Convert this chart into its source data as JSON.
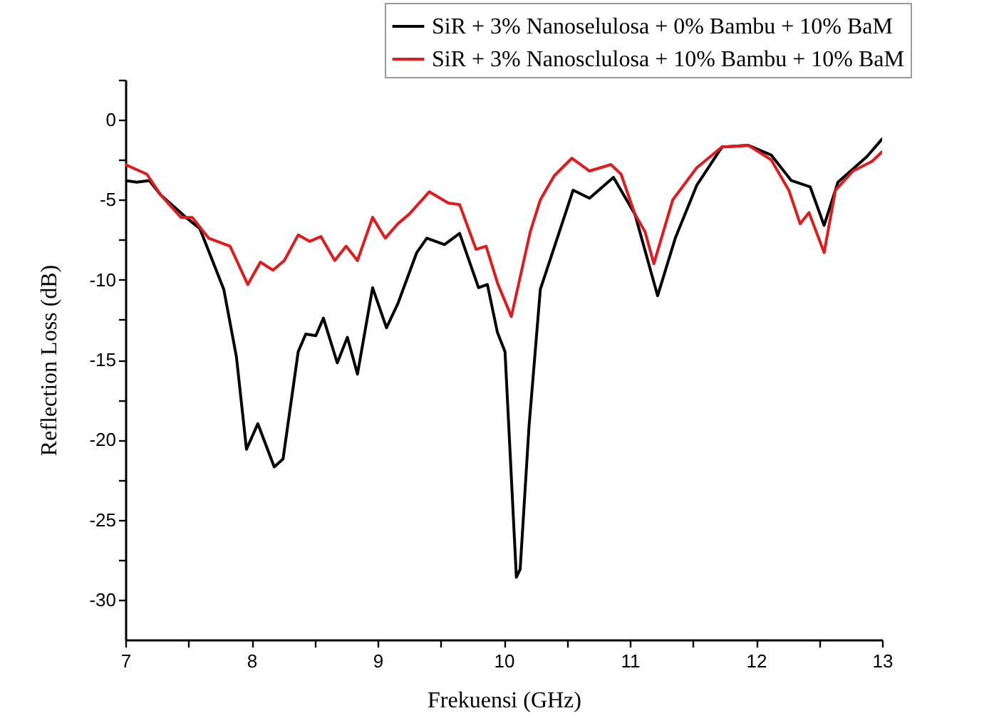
{
  "chart_data": {
    "type": "line",
    "xlabel": "Frekuensi (GHz)",
    "ylabel": "Reflection Loss (dB)",
    "xlim": [
      7,
      13
    ],
    "ylim": [
      -32.5,
      2.5
    ],
    "xticks": [
      7,
      {
        "value": 7.5,
        "label": null
      },
      8,
      {
        "value": 8.5,
        "label": null
      },
      9,
      {
        "value": 9.5,
        "label": null
      },
      10,
      {
        "value": 10.5,
        "label": null
      },
      11,
      {
        "value": 11.5,
        "label": null
      },
      12,
      {
        "value": 12.5,
        "label": null
      },
      13
    ],
    "yticks": [
      -30,
      {
        "value": -27.5,
        "label": null
      },
      -25,
      {
        "value": -22.5,
        "label": null
      },
      -20,
      {
        "value": -17.5,
        "label": null
      },
      -15,
      {
        "value": -12.5,
        "label": null
      },
      -10,
      {
        "value": -7.5,
        "label": null
      },
      -5,
      {
        "value": -2.5,
        "label": null
      },
      0,
      {
        "value": 2.5,
        "label": null
      }
    ],
    "grid": false,
    "legend": "top right",
    "line_style": "solid",
    "series": [
      {
        "name": "SiR + 3% Nanoselulosa + 0% Bambu + 10% BaM",
        "color": "#000000",
        "x": [
          7.0,
          7.09,
          7.19,
          7.28,
          7.48,
          7.59,
          7.69,
          7.78,
          7.88,
          7.96,
          8.05,
          8.18,
          8.25,
          8.37,
          8.43,
          8.51,
          8.57,
          8.68,
          8.76,
          8.84,
          8.96,
          9.07,
          9.16,
          9.31,
          9.39,
          9.53,
          9.65,
          9.8,
          9.87,
          9.95,
          10.01,
          10.1,
          10.13,
          10.2,
          10.29,
          10.55,
          10.68,
          10.87,
          11.04,
          11.22,
          11.36,
          11.53,
          11.73,
          11.94,
          12.12,
          12.28,
          12.43,
          12.54,
          12.65,
          12.88,
          13.0
        ],
        "values": [
          -3.8,
          -3.9,
          -3.8,
          -4.7,
          -6.1,
          -6.8,
          -8.8,
          -10.6,
          -14.8,
          -20.6,
          -19.0,
          -21.7,
          -21.2,
          -14.5,
          -13.4,
          -13.5,
          -12.4,
          -15.2,
          -13.6,
          -15.9,
          -10.5,
          -13.0,
          -11.5,
          -8.3,
          -7.4,
          -7.8,
          -7.1,
          -10.5,
          -10.3,
          -13.3,
          -14.5,
          -28.6,
          -28.1,
          -19.2,
          -10.6,
          -4.4,
          -4.9,
          -3.6,
          -5.9,
          -11.0,
          -7.4,
          -4.1,
          -1.7,
          -1.6,
          -2.2,
          -3.8,
          -4.2,
          -6.6,
          -3.9,
          -2.3,
          -1.2
        ]
      },
      {
        "name": "SiR + 3% Nanosclulosa + 10% Bambu + 10% BaM",
        "color": "#e31a1c",
        "x": [
          7.0,
          7.17,
          7.28,
          7.44,
          7.53,
          7.66,
          7.83,
          7.97,
          8.07,
          8.17,
          8.26,
          8.37,
          8.46,
          8.55,
          8.66,
          8.75,
          8.84,
          8.96,
          9.06,
          9.16,
          9.25,
          9.41,
          9.56,
          9.65,
          9.78,
          9.86,
          9.95,
          10.06,
          10.21,
          10.29,
          10.4,
          10.54,
          10.68,
          10.85,
          10.93,
          11.04,
          11.12,
          11.19,
          11.34,
          11.53,
          11.73,
          11.94,
          12.12,
          12.26,
          12.35,
          12.42,
          12.54,
          12.63,
          12.77,
          12.92,
          13.0
        ],
        "values": [
          -2.8,
          -3.4,
          -4.7,
          -6.1,
          -6.1,
          -7.4,
          -7.9,
          -10.3,
          -8.9,
          -9.4,
          -8.8,
          -7.2,
          -7.6,
          -7.3,
          -8.8,
          -7.9,
          -8.8,
          -6.1,
          -7.4,
          -6.5,
          -5.9,
          -4.5,
          -5.2,
          -5.3,
          -8.1,
          -7.9,
          -10.2,
          -12.3,
          -7.0,
          -5.0,
          -3.5,
          -2.4,
          -3.2,
          -2.8,
          -3.4,
          -5.9,
          -7.0,
          -9.0,
          -5.0,
          -3.0,
          -1.7,
          -1.6,
          -2.5,
          -4.4,
          -6.5,
          -5.8,
          -8.3,
          -4.4,
          -3.2,
          -2.6,
          -2.0
        ]
      }
    ]
  }
}
